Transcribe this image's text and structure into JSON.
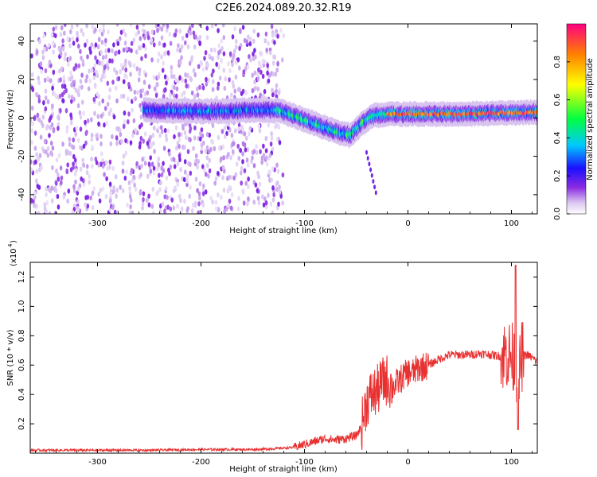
{
  "title": "C2E6.2024.089.20.32.R19",
  "chart_data": [
    {
      "type": "heatmap",
      "name": "spectrogram",
      "xlabel": "Height of straight line (km)",
      "ylabel": "Frequency (Hz)",
      "xlim": [
        -365,
        125
      ],
      "ylim": [
        -50,
        49
      ],
      "x_ticks": [
        "-300",
        "-200",
        "-100",
        "0",
        "100"
      ],
      "y_ticks": [
        "40",
        "20",
        "0",
        "-20",
        "-40"
      ],
      "colorbar": {
        "label": "Normalized spectral amplitude",
        "range": [
          0,
          1
        ],
        "ticks": [
          "0.0",
          "0.2",
          "0.4",
          "0.6",
          "0.8"
        ],
        "colors": [
          "#ffffff",
          "#d9c4f0",
          "#8a2be2",
          "#1a10ff",
          "#00e5ff",
          "#00ff40",
          "#ffff00",
          "#ff8000",
          "#ff0040"
        ]
      },
      "ridge": {
        "x": [
          -255,
          -220,
          -180,
          -150,
          -125,
          -110,
          -95,
          -80,
          -65,
          -55,
          -45,
          -35,
          -20,
          0,
          20,
          40,
          60,
          80,
          100,
          125
        ],
        "y": [
          4,
          3.5,
          3.5,
          4,
          4,
          1,
          -2,
          -5,
          -8,
          -9,
          -3,
          1,
          2,
          2,
          2,
          2,
          2,
          2.5,
          2.5,
          3
        ]
      },
      "noise_region": {
        "x_start": -365,
        "x_end": -125,
        "y_range": [
          -50,
          49
        ]
      }
    },
    {
      "type": "line",
      "name": "snr",
      "xlabel": "Height of straight line (km)",
      "ylabel": "SNR (10 * v/v)",
      "multiplier": "(x10",
      "multiplier_exp": "4",
      "xlim": [
        -365,
        125
      ],
      "ylim": [
        0,
        1.3
      ],
      "x_ticks": [
        "-300",
        "-200",
        "-100",
        "0",
        "100"
      ],
      "y_ticks": [
        "0.2",
        "0.4",
        "0.6",
        "0.8",
        "1.0",
        "1.2"
      ],
      "color": "#e83030",
      "series": [
        {
          "x": [
            -365,
            -300,
            -250,
            -200,
            -150,
            -130,
            -110,
            -100,
            -90,
            -80,
            -70,
            -60,
            -50,
            -45,
            -40,
            -35,
            -30,
            -25,
            -20,
            -15,
            -10,
            -5,
            0,
            5,
            10,
            20,
            30,
            40,
            50,
            60,
            70,
            80,
            90,
            95,
            100,
            103,
            105,
            107,
            110,
            115,
            120,
            125
          ],
          "y": [
            0.02,
            0.02,
            0.02,
            0.025,
            0.025,
            0.03,
            0.04,
            0.06,
            0.08,
            0.1,
            0.09,
            0.1,
            0.12,
            0.18,
            0.35,
            0.4,
            0.42,
            0.48,
            0.5,
            0.45,
            0.48,
            0.52,
            0.55,
            0.55,
            0.58,
            0.6,
            0.64,
            0.67,
            0.67,
            0.67,
            0.68,
            0.67,
            0.66,
            0.68,
            0.66,
            0.62,
            0.55,
            0.5,
            0.66,
            0.67,
            0.65,
            0.62
          ]
        }
      ]
    }
  ]
}
